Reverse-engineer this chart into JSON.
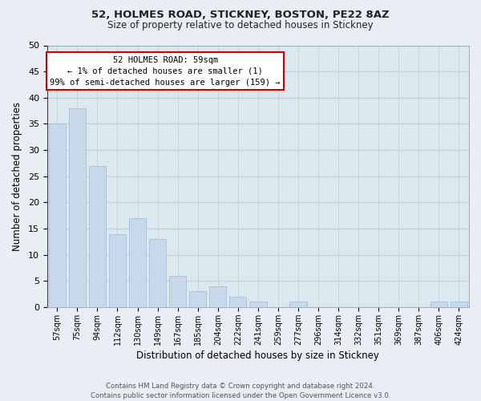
{
  "title": "52, HOLMES ROAD, STICKNEY, BOSTON, PE22 8AZ",
  "subtitle": "Size of property relative to detached houses in Stickney",
  "xlabel": "Distribution of detached houses by size in Stickney",
  "ylabel": "Number of detached properties",
  "bar_color": "#c8d8eb",
  "bar_edge_color": "#a8c0d8",
  "annotation_box_color": "#cc0000",
  "annotation_lines": [
    "52 HOLMES ROAD: 59sqm",
    "← 1% of detached houses are smaller (1)",
    "99% of semi-detached houses are larger (159) →"
  ],
  "categories": [
    "57sqm",
    "75sqm",
    "94sqm",
    "112sqm",
    "130sqm",
    "149sqm",
    "167sqm",
    "185sqm",
    "204sqm",
    "222sqm",
    "241sqm",
    "259sqm",
    "277sqm",
    "296sqm",
    "314sqm",
    "332sqm",
    "351sqm",
    "369sqm",
    "387sqm",
    "406sqm",
    "424sqm"
  ],
  "values": [
    35,
    38,
    27,
    14,
    17,
    13,
    6,
    3,
    4,
    2,
    1,
    0,
    1,
    0,
    0,
    0,
    0,
    0,
    0,
    1,
    1
  ],
  "ylim": [
    0,
    50
  ],
  "yticks": [
    0,
    5,
    10,
    15,
    20,
    25,
    30,
    35,
    40,
    45,
    50
  ],
  "footer_lines": [
    "Contains HM Land Registry data © Crown copyright and database right 2024.",
    "Contains public sector information licensed under the Open Government Licence v3.0."
  ],
  "background_color": "#e8eef4",
  "plot_background_color": "#dce8f0",
  "grid_color": "#c0ced8",
  "spine_color": "#a0b0c0"
}
